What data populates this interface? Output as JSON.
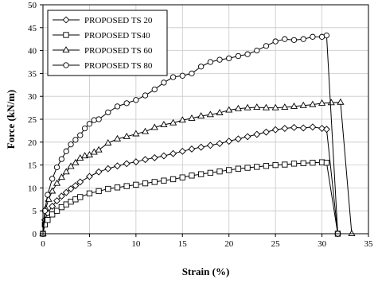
{
  "chart_data": {
    "type": "line",
    "xlabel": "Strain (%)",
    "ylabel": "Force (kN/m)",
    "xlim": [
      0,
      35
    ],
    "ylim": [
      0,
      50
    ],
    "x_ticks": [
      0,
      5,
      10,
      15,
      20,
      25,
      30,
      35
    ],
    "y_ticks": [
      0,
      5,
      10,
      15,
      20,
      25,
      30,
      35,
      40,
      45,
      50
    ],
    "grid": true,
    "legend_position": "top-left",
    "series": [
      {
        "name": "PROPOSED TS 20",
        "marker": "diamond",
        "x": [
          0,
          0.2,
          0.5,
          1.0,
          1.5,
          2.0,
          2.5,
          3.0,
          3.5,
          4.0,
          5.0,
          6.0,
          7.0,
          8.0,
          9.0,
          10.0,
          11.0,
          12.0,
          13.0,
          14.0,
          15.0,
          16.0,
          17.0,
          18.0,
          19.0,
          20.0,
          21.0,
          22.0,
          23.0,
          24.0,
          25.0,
          26.0,
          27.0,
          28.0,
          29.0,
          30.0,
          30.5,
          31.7
        ],
        "y": [
          0,
          3.0,
          4.5,
          6.0,
          7.2,
          8.2,
          9.0,
          9.8,
          10.5,
          11.3,
          12.5,
          13.5,
          14.2,
          14.8,
          15.3,
          15.7,
          16.2,
          16.6,
          17.0,
          17.5,
          18.0,
          18.5,
          18.9,
          19.3,
          19.7,
          20.2,
          20.7,
          21.2,
          21.7,
          22.2,
          22.7,
          23.0,
          23.2,
          23.1,
          23.3,
          23.0,
          22.8,
          0
        ]
      },
      {
        "name": "PROPOSED TS40",
        "marker": "square",
        "x": [
          0,
          0.2,
          0.5,
          1.0,
          1.5,
          2.0,
          2.5,
          3.0,
          3.5,
          4.0,
          5.0,
          6.0,
          7.0,
          8.0,
          9.0,
          10.0,
          11.0,
          12.0,
          13.0,
          14.0,
          15.0,
          16.0,
          17.0,
          18.0,
          19.0,
          20.0,
          21.0,
          22.0,
          23.0,
          24.0,
          25.0,
          26.0,
          27.0,
          28.0,
          29.0,
          30.0,
          30.5,
          31.7
        ],
        "y": [
          0,
          2.0,
          3.0,
          4.2,
          5.0,
          5.8,
          6.4,
          7.0,
          7.5,
          8.0,
          8.8,
          9.3,
          9.8,
          10.1,
          10.4,
          10.7,
          11.0,
          11.3,
          11.6,
          11.9,
          12.3,
          12.7,
          13.0,
          13.3,
          13.6,
          13.9,
          14.2,
          14.4,
          14.6,
          14.8,
          15.0,
          15.1,
          15.3,
          15.4,
          15.5,
          15.6,
          15.5,
          0
        ]
      },
      {
        "name": "PROPOSED TS 60",
        "marker": "triangle",
        "x": [
          0,
          0.3,
          0.6,
          1.0,
          1.5,
          2.0,
          2.5,
          3.0,
          3.5,
          4.0,
          4.5,
          5.0,
          5.5,
          6.0,
          7.0,
          8.0,
          9.0,
          10.0,
          11.0,
          12.0,
          13.0,
          14.0,
          15.0,
          16.0,
          17.0,
          18.0,
          19.0,
          20.0,
          21.0,
          22.0,
          23.0,
          24.0,
          25.0,
          26.0,
          27.0,
          28.0,
          29.0,
          30.0,
          31.0,
          32.0,
          33.2
        ],
        "y": [
          0,
          5.5,
          7.5,
          9.3,
          11.0,
          12.3,
          13.5,
          14.7,
          15.5,
          16.5,
          17.0,
          17.2,
          17.8,
          18.3,
          19.8,
          20.7,
          21.2,
          21.8,
          22.3,
          23.2,
          23.8,
          24.2,
          24.8,
          25.2,
          25.7,
          26.0,
          26.4,
          27.0,
          27.3,
          27.5,
          27.6,
          27.5,
          27.5,
          27.6,
          27.8,
          28.0,
          28.2,
          28.5,
          28.6,
          28.7,
          0
        ]
      },
      {
        "name": "PROPOSED TS 80",
        "marker": "circle",
        "x": [
          0,
          0.2,
          0.5,
          1.0,
          1.5,
          2.0,
          2.5,
          3.0,
          3.5,
          4.0,
          4.5,
          5.0,
          5.5,
          6.0,
          7.0,
          8.0,
          9.0,
          10.0,
          11.0,
          12.0,
          13.0,
          14.0,
          15.0,
          16.0,
          17.0,
          18.0,
          19.0,
          20.0,
          21.0,
          22.0,
          23.0,
          24.0,
          25.0,
          26.0,
          27.0,
          28.0,
          29.0,
          30.0,
          30.5,
          31.7
        ],
        "y": [
          0,
          5.0,
          8.5,
          12.0,
          14.5,
          16.3,
          18.0,
          19.5,
          20.5,
          21.5,
          23.0,
          24.0,
          24.8,
          25.0,
          26.5,
          27.8,
          28.5,
          29.2,
          30.2,
          31.5,
          33.0,
          34.2,
          34.5,
          35.0,
          36.5,
          37.5,
          38.0,
          38.3,
          38.8,
          39.2,
          40.0,
          41.0,
          42.0,
          42.5,
          42.3,
          42.5,
          43.0,
          43.0,
          43.3,
          0
        ]
      }
    ]
  }
}
